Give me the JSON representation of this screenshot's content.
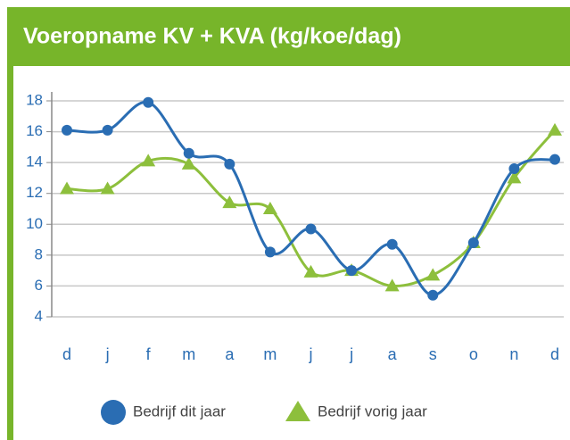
{
  "chart_data": {
    "type": "line",
    "title": "Voeropname KV + KVA (kg/koe/dag)",
    "categories": [
      "d",
      "j",
      "f",
      "m",
      "a",
      "m",
      "j",
      "j",
      "a",
      "s",
      "o",
      "n",
      "d"
    ],
    "series": [
      {
        "name": "Bedrijf dit jaar",
        "color": "#2a6db3",
        "marker": "circle",
        "values": [
          16.1,
          16.1,
          17.9,
          14.6,
          13.9,
          8.2,
          9.7,
          7.0,
          8.7,
          5.4,
          8.8,
          13.6,
          14.2
        ]
      },
      {
        "name": "Bedrijf vorig jaar",
        "color": "#8dbf3c",
        "marker": "triangle",
        "values": [
          12.3,
          12.3,
          14.1,
          13.9,
          11.4,
          11.0,
          6.9,
          7.0,
          6.0,
          6.7,
          8.8,
          13.0,
          16.1
        ]
      }
    ],
    "ylim": [
      4,
      18
    ],
    "yticks": [
      4,
      6,
      8,
      10,
      12,
      14,
      16,
      18
    ],
    "grid": true,
    "legend": "bottom"
  }
}
